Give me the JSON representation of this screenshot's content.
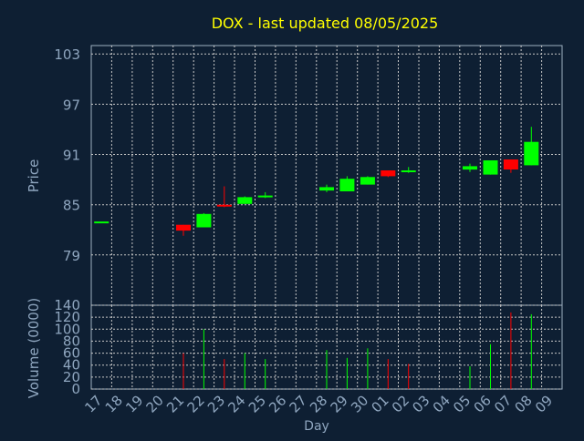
{
  "chart_data": [
    {
      "type": "candlestick",
      "title": "DOX - last updated 08/05/2025",
      "ylabel": "Price",
      "ylim": [
        73,
        104
      ],
      "yticks": [
        79,
        85,
        91,
        97,
        103
      ],
      "grid": true,
      "categories": [
        "17",
        "18",
        "19",
        "20",
        "21",
        "22",
        "23",
        "24",
        "25",
        "26",
        "27",
        "28",
        "29",
        "30",
        "01",
        "02",
        "03",
        "04",
        "05",
        "06",
        "07",
        "08",
        "09"
      ],
      "series": [
        {
          "values": [
            {
              "x": "17",
              "open": 83.0,
              "high": 83.0,
              "low": 83.0,
              "close": 83.0
            },
            {
              "x": "21",
              "open": 82.6,
              "high": 82.6,
              "low": 81.3,
              "close": 81.9
            },
            {
              "x": "22",
              "open": 82.3,
              "high": 84.0,
              "low": 82.3,
              "close": 83.9
            },
            {
              "x": "23",
              "open": 85.0,
              "high": 87.2,
              "low": 84.7,
              "close": 84.9
            },
            {
              "x": "24",
              "open": 85.1,
              "high": 86.0,
              "low": 85.1,
              "close": 85.9
            },
            {
              "x": "25",
              "open": 86.0,
              "high": 86.5,
              "low": 85.8,
              "close": 86.1
            },
            {
              "x": "28",
              "open": 86.7,
              "high": 87.4,
              "low": 86.5,
              "close": 87.1
            },
            {
              "x": "29",
              "open": 86.6,
              "high": 88.4,
              "low": 86.6,
              "close": 88.1
            },
            {
              "x": "30",
              "open": 87.4,
              "high": 88.4,
              "low": 87.4,
              "close": 88.3
            },
            {
              "x": "01",
              "open": 89.1,
              "high": 89.1,
              "low": 88.3,
              "close": 88.4
            },
            {
              "x": "02",
              "open": 89.1,
              "high": 89.5,
              "low": 88.8,
              "close": 89.1
            },
            {
              "x": "05",
              "open": 89.2,
              "high": 89.9,
              "low": 88.9,
              "close": 89.6
            },
            {
              "x": "06",
              "open": 88.6,
              "high": 90.3,
              "low": 88.6,
              "close": 90.3
            },
            {
              "x": "07",
              "open": 90.4,
              "high": 90.4,
              "low": 88.8,
              "close": 89.2
            },
            {
              "x": "08",
              "open": 89.7,
              "high": 94.3,
              "low": 89.7,
              "close": 92.5
            }
          ]
        }
      ]
    },
    {
      "type": "bar",
      "ylabel": "Volume (0000)",
      "xlabel": "Day",
      "ylim": [
        0,
        140
      ],
      "yticks": [
        0,
        20,
        40,
        60,
        80,
        100,
        120,
        140
      ],
      "grid": true,
      "categories": [
        "17",
        "18",
        "19",
        "20",
        "21",
        "22",
        "23",
        "24",
        "25",
        "26",
        "27",
        "28",
        "29",
        "30",
        "01",
        "02",
        "03",
        "04",
        "05",
        "06",
        "07",
        "08",
        "09"
      ],
      "series": [
        {
          "values": [
            {
              "x": "21",
              "value": 60,
              "direction": "down"
            },
            {
              "x": "22",
              "value": 100,
              "direction": "up"
            },
            {
              "x": "23",
              "value": 50,
              "direction": "down"
            },
            {
              "x": "24",
              "value": 60,
              "direction": "up"
            },
            {
              "x": "25",
              "value": 50,
              "direction": "up"
            },
            {
              "x": "28",
              "value": 65,
              "direction": "up"
            },
            {
              "x": "29",
              "value": 52,
              "direction": "up"
            },
            {
              "x": "30",
              "value": 68,
              "direction": "up"
            },
            {
              "x": "01",
              "value": 50,
              "direction": "down"
            },
            {
              "x": "02",
              "value": 42,
              "direction": "down"
            },
            {
              "x": "05",
              "value": 38,
              "direction": "up"
            },
            {
              "x": "06",
              "value": 75,
              "direction": "up"
            },
            {
              "x": "07",
              "value": 128,
              "direction": "down"
            },
            {
              "x": "08",
              "value": 125,
              "direction": "up"
            }
          ]
        }
      ]
    }
  ],
  "colors": {
    "background": "#0e1f33",
    "title": "#ffff00",
    "axis_text": "#8fa6bf",
    "up": "#00ff00",
    "down": "#ff0000",
    "grid": "#c8c8c8"
  }
}
